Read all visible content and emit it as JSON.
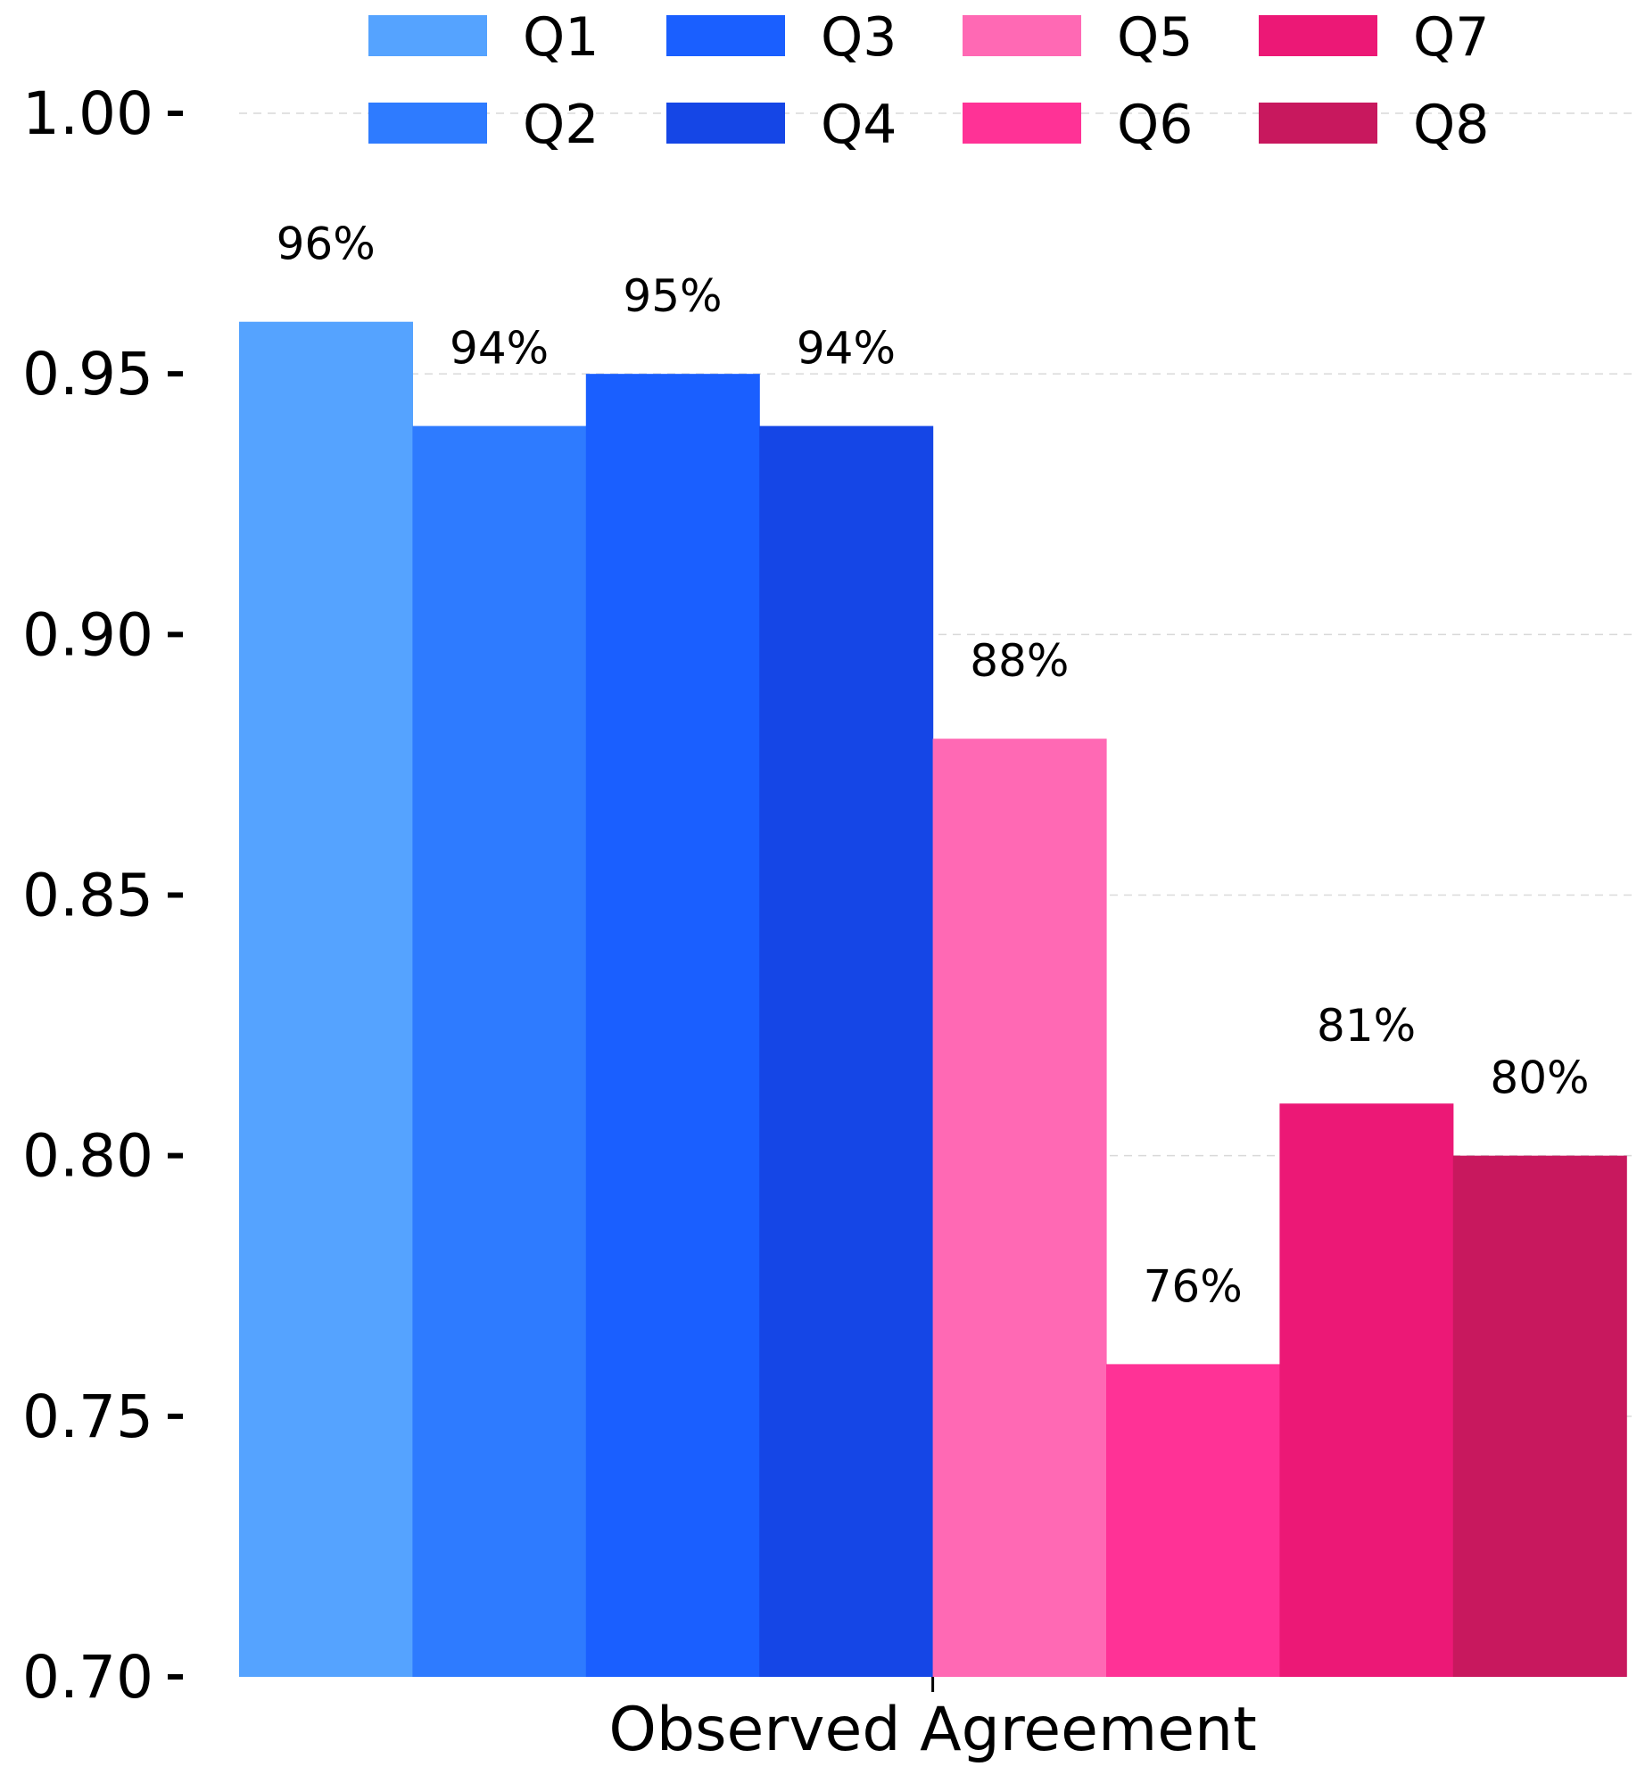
{
  "chart_data": {
    "type": "bar",
    "x_category": "Observed Agreement",
    "xlabel": "Observed Agreement",
    "ylabel": "",
    "ylim": [
      0.7,
      1.0
    ],
    "yticks": [
      0.7,
      0.75,
      0.8,
      0.85,
      0.9,
      0.95,
      1.0
    ],
    "ytick_labels": [
      "0.70",
      "0.75",
      "0.80",
      "0.85",
      "0.90",
      "0.95",
      "1.00"
    ],
    "grid": true,
    "legend_position": "top",
    "series": [
      {
        "name": "Q1",
        "value": 0.96,
        "label": "96%",
        "color": "#55a3ff"
      },
      {
        "name": "Q2",
        "value": 0.94,
        "label": "94%",
        "color": "#2e7bff"
      },
      {
        "name": "Q3",
        "value": 0.95,
        "label": "95%",
        "color": "#1a5fff"
      },
      {
        "name": "Q4",
        "value": 0.94,
        "label": "94%",
        "color": "#1546e6"
      },
      {
        "name": "Q5",
        "value": 0.88,
        "label": "88%",
        "color": "#ff69b4"
      },
      {
        "name": "Q6",
        "value": 0.76,
        "label": "76%",
        "color": "#ff3296"
      },
      {
        "name": "Q7",
        "value": 0.81,
        "label": "81%",
        "color": "#ec1876"
      },
      {
        "name": "Q8",
        "value": 0.8,
        "label": "80%",
        "color": "#c8185e"
      }
    ]
  }
}
